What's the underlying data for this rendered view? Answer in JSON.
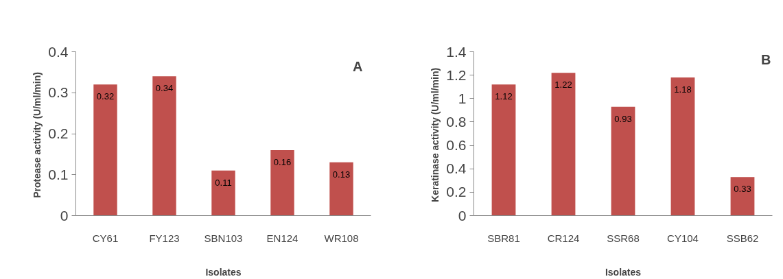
{
  "chart_data": [
    {
      "type": "bar",
      "xlabel": "Isolates",
      "ylabel": "Protease  activity (U/ml/min)",
      "annotations": [
        "A"
      ],
      "categories": [
        "CY61",
        "FY123",
        "SBN103",
        "EN124",
        "WR108"
      ],
      "values": [
        0.32,
        0.34,
        0.11,
        0.16,
        0.13
      ],
      "color": "#c0504d",
      "ylim": [
        0,
        0.4
      ],
      "yticks": [
        0,
        0.1,
        0.2,
        0.3,
        0.4
      ],
      "data_labels": true,
      "grid": false
    },
    {
      "type": "bar",
      "xlabel": "Isolates",
      "ylabel": "Keratinase  activity (U/ml/min)",
      "annotations": [
        "B"
      ],
      "categories": [
        "SBR81",
        "CR124",
        "SSR68",
        "CY104",
        "SSB62"
      ],
      "values": [
        1.12,
        1.22,
        0.93,
        1.18,
        0.33
      ],
      "color": "#c0504d",
      "ylim": [
        0,
        1.4
      ],
      "yticks": [
        0,
        0.2,
        0.4,
        0.6,
        0.8,
        1,
        1.2,
        1.4
      ],
      "data_labels": true,
      "grid": false
    }
  ]
}
